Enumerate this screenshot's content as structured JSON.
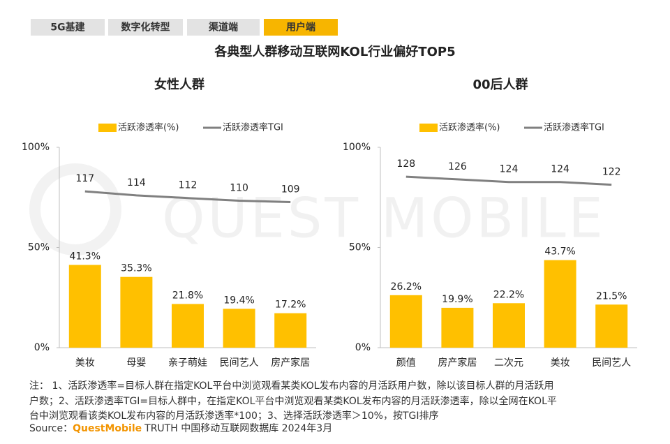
{
  "tabs": [
    "5G基建",
    "数字化转型",
    "渠道端",
    "用户端"
  ],
  "active_tab": 3,
  "title": "各典型人群移动互联网KOL行业偏好TOP5",
  "watermark": "QUEST MOBILE",
  "chart_data": [
    {
      "type": "bar",
      "title": "女性人群",
      "categories": [
        "美妆",
        "母婴",
        "亲子萌娃",
        "民间艺人",
        "房产家居"
      ],
      "ylim": [
        0,
        100
      ],
      "yticks": [
        {
          "value": 0,
          "label": "0%"
        },
        {
          "value": 50,
          "label": "50%"
        },
        {
          "value": 100,
          "label": "100%"
        }
      ],
      "y2lim": [
        0,
        150
      ],
      "series": [
        {
          "name": "活跃渗透率(%)",
          "type": "bar",
          "color": "#ffc000",
          "values": [
            41.3,
            35.3,
            21.8,
            19.4,
            17.2
          ],
          "value_labels": [
            "41.3%",
            "35.3%",
            "21.8%",
            "19.4%",
            "17.2%"
          ]
        },
        {
          "name": "活跃渗透率TGI",
          "type": "line",
          "axis": "y2",
          "color": "#808080",
          "values": [
            117,
            114,
            112,
            110,
            109
          ]
        }
      ]
    },
    {
      "type": "bar",
      "title": "00后人群",
      "categories": [
        "颜值",
        "房产家居",
        "二次元",
        "美妆",
        "民间艺人"
      ],
      "ylim": [
        0,
        100
      ],
      "yticks": [
        {
          "value": 0,
          "label": "0%"
        },
        {
          "value": 50,
          "label": "50%"
        },
        {
          "value": 100,
          "label": "100%"
        }
      ],
      "y2lim": [
        0,
        150
      ],
      "series": [
        {
          "name": "活跃渗透率(%)",
          "type": "bar",
          "color": "#ffc000",
          "values": [
            26.2,
            19.9,
            22.2,
            43.7,
            21.5
          ],
          "value_labels": [
            "26.2%",
            "19.9%",
            "22.2%",
            "43.7%",
            "21.5%"
          ]
        },
        {
          "name": "活跃渗透率TGI",
          "type": "line",
          "axis": "y2",
          "color": "#808080",
          "values": [
            128,
            126,
            124,
            124,
            122
          ]
        }
      ]
    }
  ],
  "notes": [
    "注： 1、活跃渗透率=目标人群在指定KOL平台中浏览观看某类KOL发布内容的月活跃用户数，除以该目标人群的月活跃用",
    "户数；2、活跃渗透率TGI=目标人群中，在指定KOL平台中浏览观看某类KOL发布内容的月活跃渗透率，除以全网在KOL平",
    "台中浏览观看该类KOL发布内容的月活跃渗透率*100；3、选择活跃渗透率＞10%，按TGI排序"
  ],
  "source": {
    "label": "Source：",
    "brand": "QuestMobile",
    "text": "TRUTH 中国移动互联网数据库 2024年3月"
  }
}
